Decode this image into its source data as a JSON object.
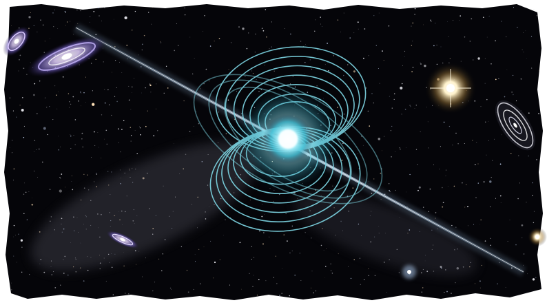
{
  "image": {
    "subject": "magnetar-illustration",
    "background_color": "#ffffff",
    "space_color": "#050509",
    "beam_color": "#9fc3e6",
    "field_line_color": "#7fd8e6",
    "core_color": "#c8fbff",
    "bright_star_color": "#fff4d6"
  }
}
